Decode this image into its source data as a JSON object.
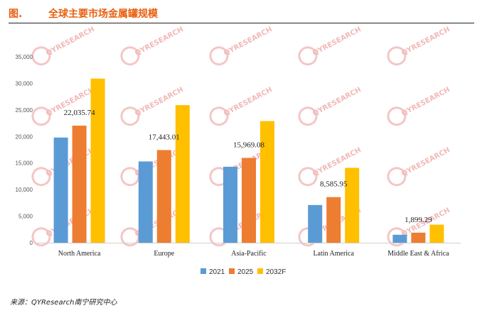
{
  "header": {
    "fig_label": "图.",
    "title": "全球主要市场金属罐规模"
  },
  "watermark": {
    "text": "QYRESEARCH"
  },
  "chart_data": {
    "type": "bar",
    "categories": [
      "North America",
      "Europe",
      "Asia-Pacific",
      "Latin America",
      "Middle East & Africa"
    ],
    "series": [
      {
        "name": "2021",
        "color": "#5b9bd5",
        "values": [
          19800,
          15300,
          14300,
          7100,
          1500
        ]
      },
      {
        "name": "2025",
        "color": "#ed7d31",
        "values": [
          22035.74,
          17443.01,
          15969.08,
          8585.95,
          1899.29
        ]
      },
      {
        "name": "2032F",
        "color": "#ffc000",
        "values": [
          30900,
          25900,
          22900,
          14100,
          3400
        ]
      }
    ],
    "data_labels": [
      "22,035.74",
      "17,443.01",
      "15,969.08",
      "8,585.95",
      "1,899.29"
    ],
    "yticks": [
      "0",
      "5,000",
      "10,000",
      "15,000",
      "20,000",
      "25,000",
      "30,000",
      "35,000"
    ],
    "ylim": [
      0,
      35000
    ],
    "legend_position": "bottom",
    "grid": false
  },
  "source": "来源：QYResearch南宁研究中心"
}
